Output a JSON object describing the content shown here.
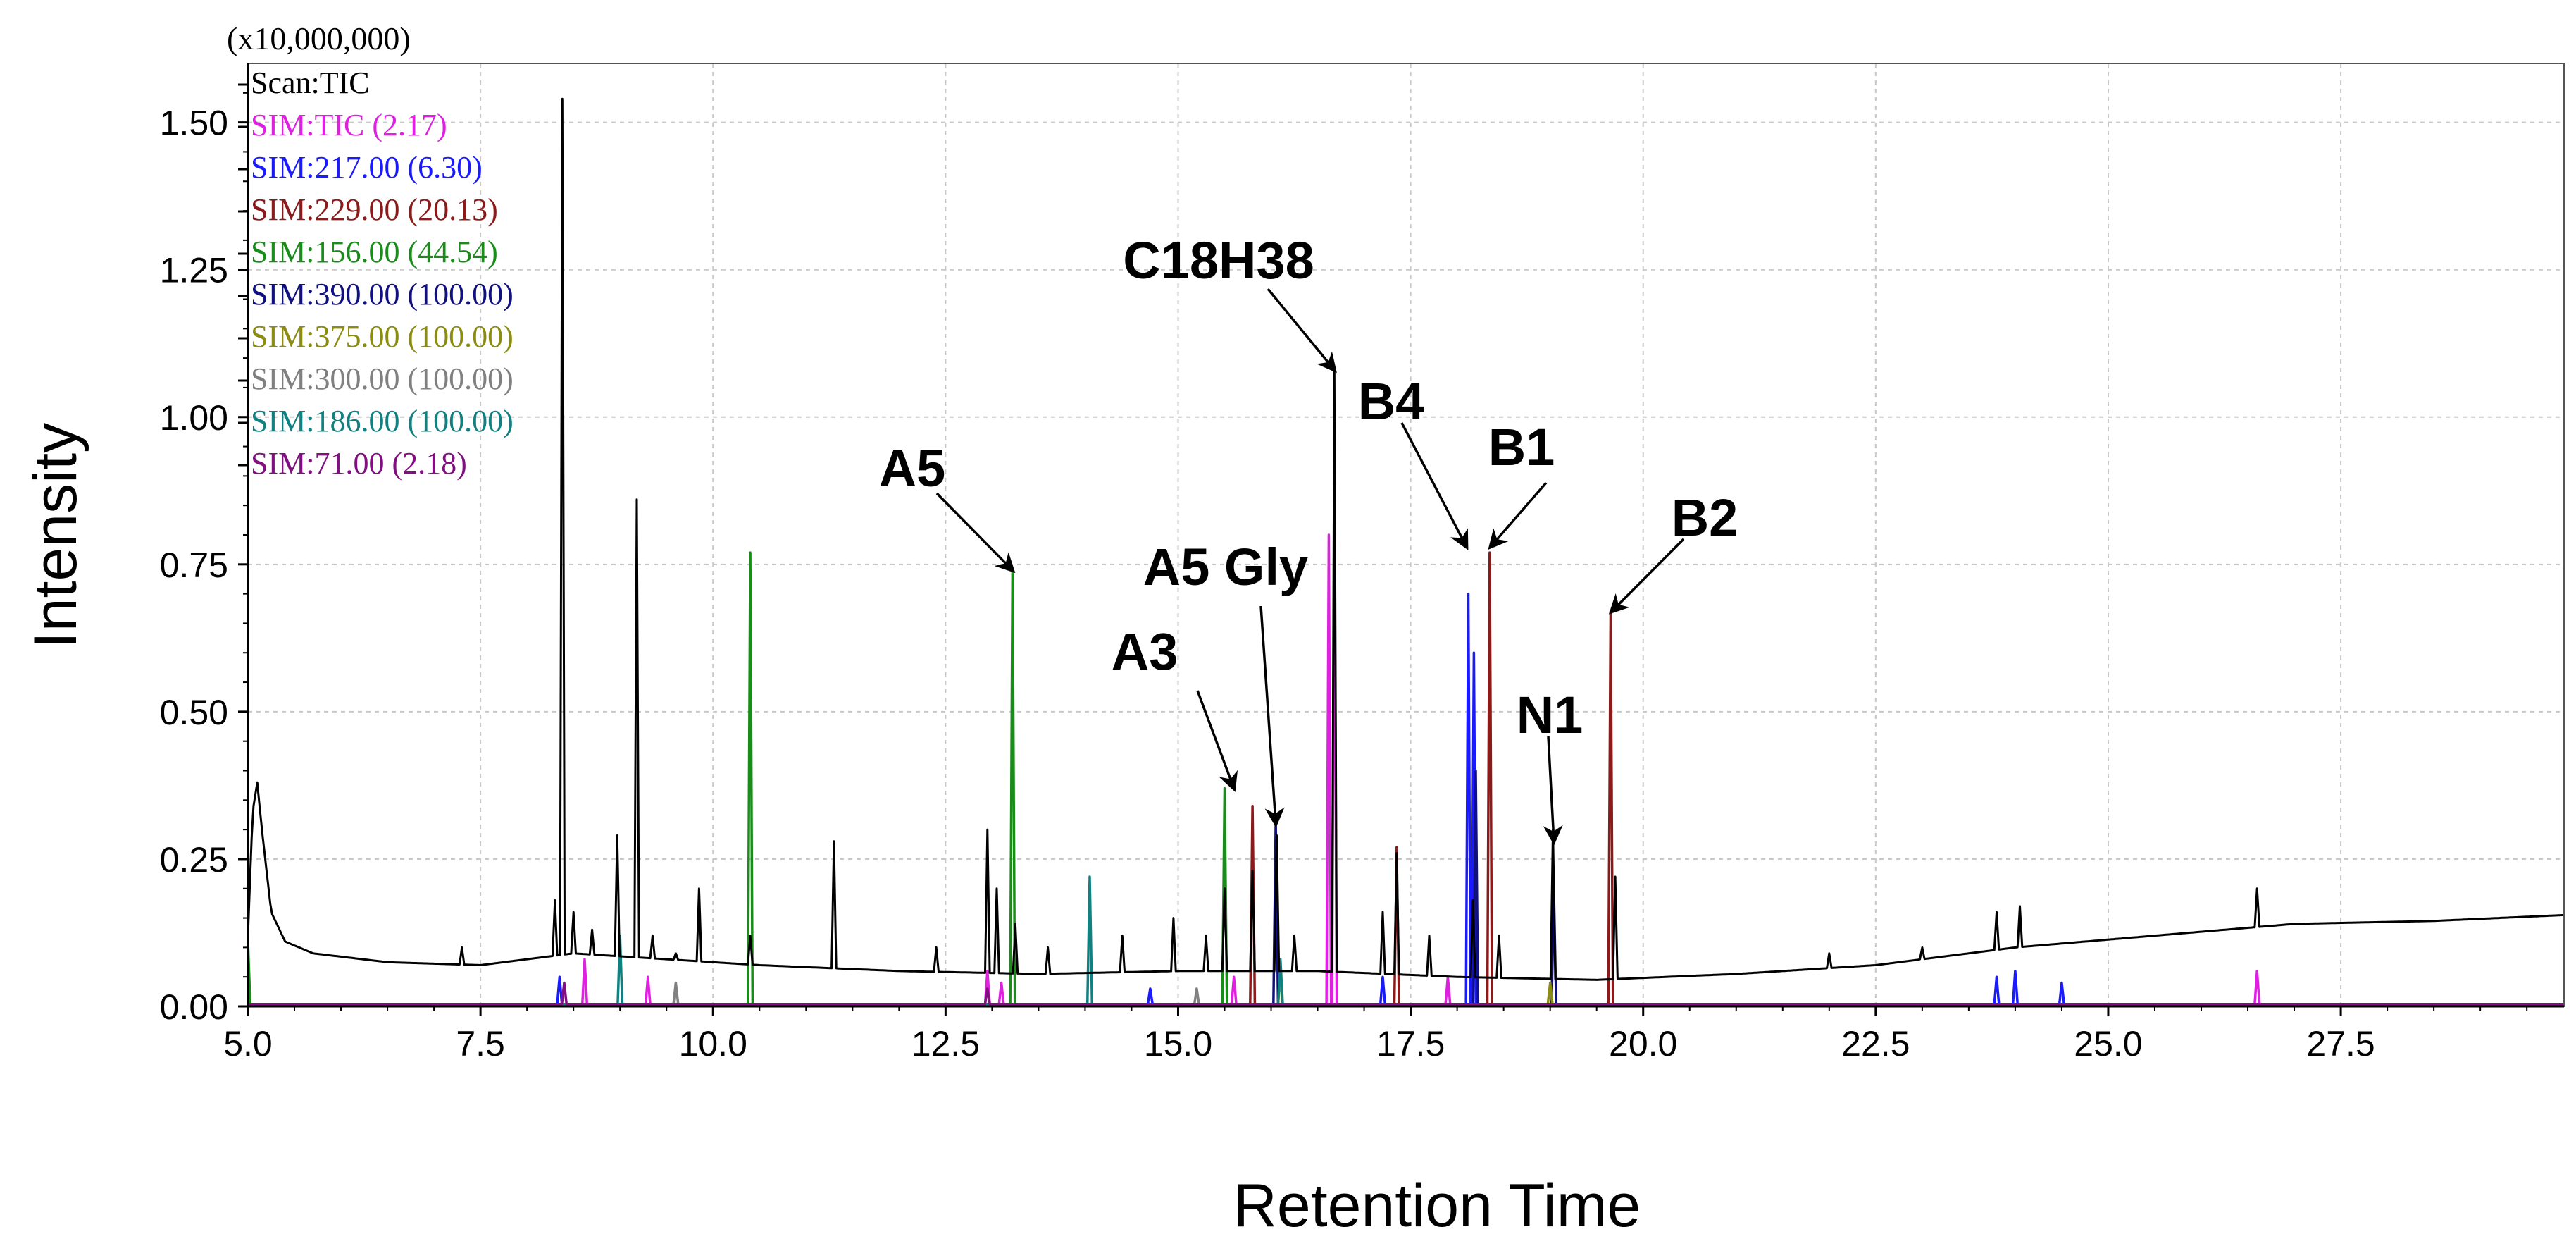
{
  "chart_data": {
    "type": "line",
    "xlabel": "Retention Time",
    "ylabel": "Intensity",
    "y_multiplier_label": "(x10,000,000)",
    "xlim": [
      5.0,
      29.9
    ],
    "ylim": [
      0.0,
      1.6
    ],
    "x_ticks": [
      "5.0",
      "7.5",
      "10.0",
      "12.5",
      "15.0",
      "17.5",
      "20.0",
      "22.5",
      "25.0",
      "27.5"
    ],
    "y_ticks": [
      "0.00",
      "0.25",
      "0.50",
      "0.75",
      "1.00",
      "1.25",
      "1.50"
    ],
    "grid": true,
    "legend_placement": "top-left",
    "legend": [
      {
        "label": "Scan:TIC",
        "color": "#000000"
      },
      {
        "label": "SIM:TIC (2.17)",
        "color": "#e020e0"
      },
      {
        "label": "SIM:217.00 (6.30)",
        "color": "#1a1aff"
      },
      {
        "label": "SIM:229.00 (20.13)",
        "color": "#8b1a1a"
      },
      {
        "label": "SIM:156.00 (44.54)",
        "color": "#1a8c1a"
      },
      {
        "label": "SIM:390.00 (100.00)",
        "color": "#101080"
      },
      {
        "label": "SIM:375.00 (100.00)",
        "color": "#8c8c10"
      },
      {
        "label": "SIM:300.00 (100.00)",
        "color": "#808080"
      },
      {
        "label": "SIM:186.00 (100.00)",
        "color": "#108080"
      },
      {
        "label": "SIM:71.00 (2.18)",
        "color": "#801080"
      }
    ],
    "series": [
      {
        "color": "#000000",
        "baseline": [
          [
            5.0,
            0.12
          ],
          [
            5.05,
            0.33
          ],
          [
            5.1,
            0.38
          ],
          [
            5.15,
            0.3
          ],
          [
            5.25,
            0.16
          ],
          [
            5.4,
            0.11
          ],
          [
            5.7,
            0.09
          ],
          [
            6.5,
            0.075
          ],
          [
            7.5,
            0.07
          ],
          [
            8.5,
            0.09
          ],
          [
            9.5,
            0.08
          ],
          [
            10.5,
            0.07
          ],
          [
            12.0,
            0.06
          ],
          [
            13.5,
            0.055
          ],
          [
            15.0,
            0.06
          ],
          [
            16.5,
            0.06
          ],
          [
            18.0,
            0.05
          ],
          [
            19.5,
            0.045
          ],
          [
            21.0,
            0.055
          ],
          [
            22.5,
            0.07
          ],
          [
            24.0,
            0.1
          ],
          [
            25.5,
            0.12
          ],
          [
            27.0,
            0.14
          ],
          [
            28.5,
            0.145
          ],
          [
            29.9,
            0.155
          ]
        ],
        "peaks": [
          [
            7.3,
            0.1
          ],
          [
            8.3,
            0.18
          ],
          [
            8.38,
            1.54
          ],
          [
            8.5,
            0.16
          ],
          [
            8.7,
            0.13
          ],
          [
            8.97,
            0.29
          ],
          [
            9.18,
            0.86
          ],
          [
            9.35,
            0.12
          ],
          [
            9.6,
            0.09
          ],
          [
            9.85,
            0.2
          ],
          [
            10.4,
            0.12
          ],
          [
            11.3,
            0.28
          ],
          [
            12.4,
            0.1
          ],
          [
            12.95,
            0.3
          ],
          [
            13.05,
            0.2
          ],
          [
            13.25,
            0.14
          ],
          [
            13.6,
            0.1
          ],
          [
            14.4,
            0.12
          ],
          [
            14.95,
            0.15
          ],
          [
            15.3,
            0.12
          ],
          [
            15.5,
            0.2
          ],
          [
            15.8,
            0.23
          ],
          [
            16.06,
            0.29
          ],
          [
            16.25,
            0.12
          ],
          [
            16.68,
            1.08
          ],
          [
            17.2,
            0.16
          ],
          [
            17.35,
            0.26
          ],
          [
            17.7,
            0.12
          ],
          [
            18.17,
            0.18
          ],
          [
            18.45,
            0.12
          ],
          [
            19.03,
            0.3
          ],
          [
            19.7,
            0.22
          ],
          [
            22.0,
            0.09
          ],
          [
            23.0,
            0.1
          ],
          [
            23.8,
            0.16
          ],
          [
            24.05,
            0.17
          ],
          [
            26.6,
            0.2
          ]
        ]
      },
      {
        "color": "#e020e0",
        "peaks": [
          [
            8.62,
            0.08
          ],
          [
            9.3,
            0.05
          ],
          [
            12.95,
            0.06
          ],
          [
            13.1,
            0.04
          ],
          [
            15.6,
            0.05
          ],
          [
            16.62,
            0.8
          ],
          [
            16.68,
            0.86
          ],
          [
            17.9,
            0.05
          ],
          [
            26.6,
            0.06
          ]
        ]
      },
      {
        "color": "#1a1aff",
        "peaks": [
          [
            8.35,
            0.05
          ],
          [
            14.7,
            0.03
          ],
          [
            17.2,
            0.05
          ],
          [
            18.12,
            0.7
          ],
          [
            18.18,
            0.6
          ],
          [
            23.8,
            0.05
          ],
          [
            24.0,
            0.06
          ],
          [
            24.5,
            0.04
          ]
        ]
      },
      {
        "color": "#8b1a1a",
        "peaks": [
          [
            15.8,
            0.34
          ],
          [
            17.35,
            0.27
          ],
          [
            18.35,
            0.77
          ],
          [
            19.65,
            0.67
          ]
        ]
      },
      {
        "color": "#1a8c1a",
        "peaks": [
          [
            5.0,
            0.11
          ],
          [
            10.4,
            0.77
          ],
          [
            13.22,
            0.74
          ],
          [
            15.5,
            0.37
          ]
        ]
      },
      {
        "color": "#101080",
        "peaks": [
          [
            16.05,
            0.31
          ],
          [
            18.2,
            0.4
          ],
          [
            19.04,
            0.19
          ]
        ]
      },
      {
        "color": "#8c8c10",
        "peaks": [
          [
            16.1,
            0.05
          ],
          [
            19.0,
            0.04
          ]
        ]
      },
      {
        "color": "#808080",
        "peaks": [
          [
            9.6,
            0.04
          ],
          [
            15.2,
            0.03
          ]
        ]
      },
      {
        "color": "#108080",
        "peaks": [
          [
            9.0,
            0.12
          ],
          [
            14.05,
            0.22
          ],
          [
            16.1,
            0.08
          ]
        ]
      },
      {
        "color": "#801080",
        "peaks": [
          [
            8.4,
            0.04
          ],
          [
            12.95,
            0.03
          ]
        ]
      }
    ],
    "annotations": [
      {
        "text": "A5",
        "target_x": 13.22,
        "target_y": 0.74
      },
      {
        "text": "A3",
        "target_x": 15.6,
        "target_y": 0.37
      },
      {
        "text": "A5 Gly",
        "target_x": 16.05,
        "target_y": 0.31
      },
      {
        "text": "C18H38",
        "target_x": 16.68,
        "target_y": 1.08
      },
      {
        "text": "B4",
        "target_x": 18.1,
        "target_y": 0.78
      },
      {
        "text": "B1",
        "target_x": 18.36,
        "target_y": 0.78
      },
      {
        "text": "N1",
        "target_x": 19.04,
        "target_y": 0.28
      },
      {
        "text": "B2",
        "target_x": 19.66,
        "target_y": 0.67
      }
    ]
  }
}
